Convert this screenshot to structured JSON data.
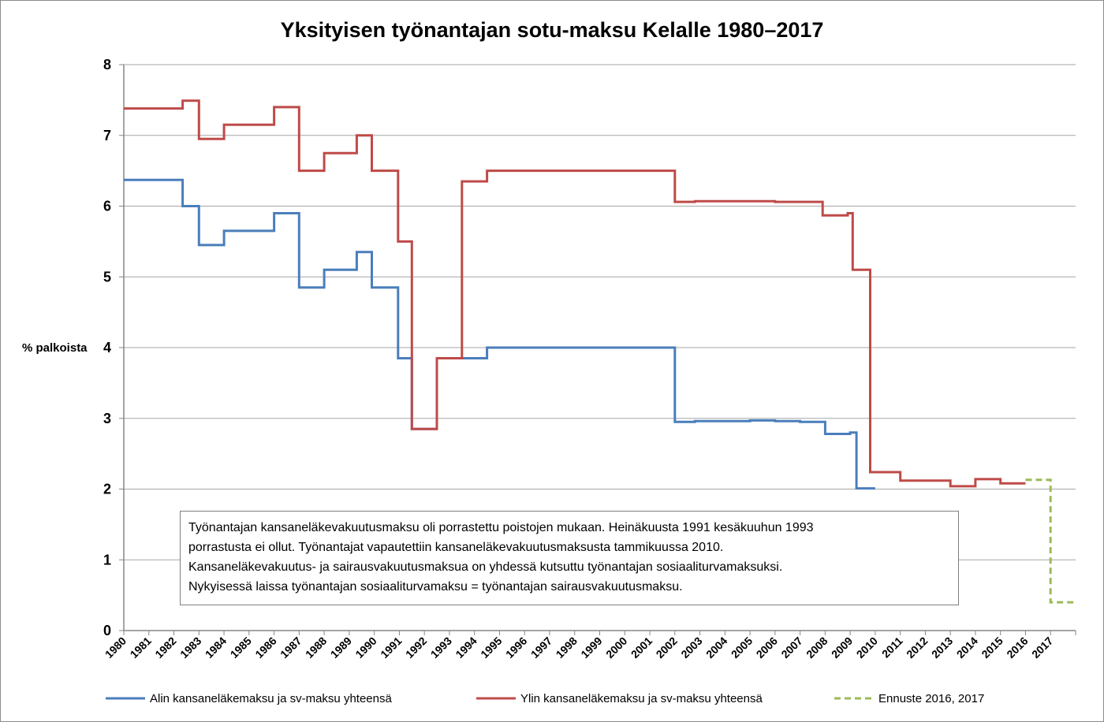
{
  "chart_data": {
    "type": "line",
    "title": "Yksityisen työnantajan sotu-maksu Kelalle 1980–2017",
    "ylabel": "% palkoista",
    "xlabel": "",
    "ylim": [
      0,
      8
    ],
    "yticks": [
      "0",
      "1",
      "2",
      "3",
      "4",
      "5",
      "6",
      "7",
      "8"
    ],
    "xlim": [
      1980,
      2018
    ],
    "xticks": [
      "1980",
      "1981",
      "1982",
      "1983",
      "1984",
      "1985",
      "1986",
      "1987",
      "1988",
      "1989",
      "1990",
      "1991",
      "1992",
      "1993",
      "1994",
      "1995",
      "1996",
      "1997",
      "1998",
      "1999",
      "2000",
      "2001",
      "2002",
      "2003",
      "2004",
      "2005",
      "2006",
      "2007",
      "2008",
      "2009",
      "2010",
      "2011",
      "2012",
      "2013",
      "2014",
      "2015",
      "2016",
      "2017"
    ],
    "grid": "horizontal",
    "legend_position": "bottom",
    "series": [
      {
        "name": "Alin kansaneläkemaksu ja sv-maksu yhteensä",
        "color": "#4a7ebb",
        "dashed": false,
        "x": [
          1980,
          1982.35,
          1982.35,
          1983,
          1983,
          1984,
          1984,
          1986,
          1986,
          1987,
          1987,
          1988,
          1988,
          1989.3,
          1989.3,
          1989.9,
          1989.9,
          1990.95,
          1990.95,
          1991.5,
          1991.5,
          1992.5,
          1992.5,
          1994.5,
          1994.5,
          2002,
          2002,
          2002.8,
          2002.8,
          2005,
          2005,
          2006,
          2006,
          2007,
          2007,
          2008,
          2008,
          2009,
          2009,
          2009.25,
          2009.25,
          2010
        ],
        "y": [
          6.37,
          6.37,
          6.0,
          6.0,
          5.45,
          5.45,
          5.65,
          5.65,
          5.9,
          5.9,
          4.85,
          4.85,
          5.1,
          5.1,
          5.35,
          5.35,
          4.85,
          4.85,
          3.85,
          3.85,
          2.85,
          2.85,
          3.85,
          3.85,
          4.0,
          4.0,
          2.95,
          2.95,
          2.96,
          2.96,
          2.97,
          2.97,
          2.96,
          2.96,
          2.95,
          2.95,
          2.78,
          2.78,
          2.8,
          2.8,
          2.01,
          2.01
        ]
      },
      {
        "name": "Ylin kansaneläkemaksu ja sv-maksu yhteensä",
        "color": "#be4b48",
        "dashed": false,
        "x": [
          1980,
          1982.35,
          1982.35,
          1983,
          1983,
          1984,
          1984,
          1986,
          1986,
          1987,
          1987,
          1988,
          1988,
          1989.3,
          1989.3,
          1989.9,
          1989.9,
          1990.95,
          1990.95,
          1991.5,
          1991.5,
          1992.5,
          1992.5,
          1993.5,
          1993.5,
          1994.5,
          1994.5,
          2002,
          2002,
          2002.8,
          2002.8,
          2006,
          2006,
          2007.9,
          2007.9,
          2008.9,
          2008.9,
          2009.1,
          2009.1,
          2009.8,
          2009.8,
          2011,
          2011,
          2013,
          2013,
          2014,
          2014,
          2015,
          2015,
          2016
        ],
        "y": [
          7.38,
          7.38,
          7.49,
          7.49,
          6.95,
          6.95,
          7.15,
          7.15,
          7.4,
          7.4,
          6.5,
          6.5,
          6.75,
          6.75,
          7.0,
          7.0,
          6.5,
          6.5,
          5.5,
          5.5,
          2.85,
          2.85,
          3.85,
          3.85,
          6.35,
          6.35,
          6.5,
          6.5,
          6.06,
          6.06,
          6.07,
          6.07,
          6.06,
          6.06,
          5.87,
          5.87,
          5.9,
          5.9,
          5.1,
          5.1,
          2.24,
          2.24,
          2.12,
          2.12,
          2.04,
          2.04,
          2.14,
          2.14,
          2.08,
          2.08
        ]
      },
      {
        "name": "Ennuste 2016, 2017",
        "color": "#9bbb59",
        "dashed": true,
        "x": [
          2016,
          2017,
          2017,
          2018
        ],
        "y": [
          2.13,
          2.13,
          0.4,
          0.4
        ]
      }
    ],
    "annotations": [
      "Työnantajan kansaneläkevakuutusmaksu oli porrastettu poistojen mukaan. Heinäkuusta 1991 kesäkuuhun 1993",
      "porrastusta ei ollut. Työnantajat vapautettiin kansaneläkevakuutusmaksusta tammikuussa 2010.",
      "Kansaneläkevakuutus- ja sairausvakuutusmaksua on yhdessä kutsuttu työnantajan sosiaaliturvamaksuksi.",
      "Nykyisessä laissa työnantajan sosiaaliturvamaksu = työnantajan sairausvakuutusmaksu."
    ]
  }
}
